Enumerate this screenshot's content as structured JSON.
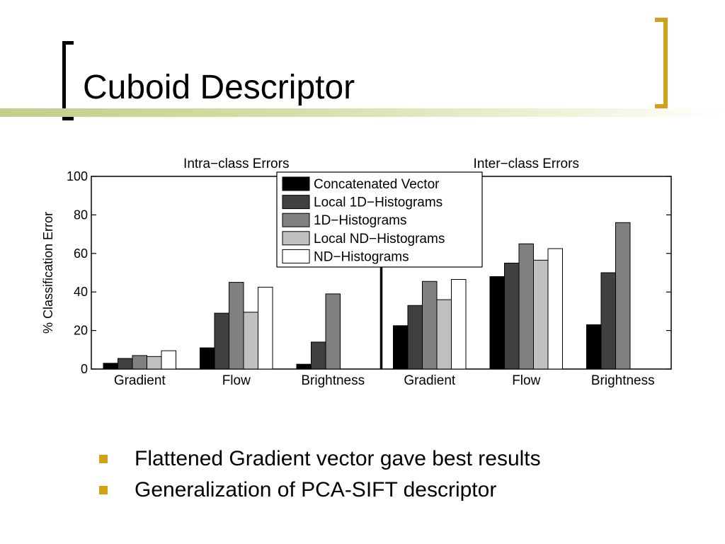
{
  "slide": {
    "title": "Cuboid Descriptor",
    "bullets": [
      "Flattened Gradient vector gave best results",
      "Generalization of PCA-SIFT descriptor"
    ],
    "accent_color": "#D4A017"
  },
  "chart_data": {
    "type": "bar",
    "panel_titles": [
      "Intra−class Errors",
      "Inter−class Errors"
    ],
    "categories": [
      "Gradient",
      "Flow",
      "Brightness",
      "Gradient",
      "Flow",
      "Brightness"
    ],
    "ylabel": "% Classification Error",
    "ylim": [
      0,
      100
    ],
    "yticks": [
      0,
      20,
      40,
      60,
      80,
      100
    ],
    "grid": false,
    "legend_position": "top-center",
    "series": [
      {
        "name": "Concatenated Vector",
        "color": "#000000",
        "values": [
          3,
          11,
          2.5,
          22.5,
          48,
          23
        ]
      },
      {
        "name": "Local 1D−Histograms",
        "color": "#404040",
        "values": [
          5.5,
          29,
          14,
          33,
          55,
          50
        ]
      },
      {
        "name": "1D−Histograms",
        "color": "#808080",
        "values": [
          7,
          45,
          39,
          45.5,
          65,
          76
        ]
      },
      {
        "name": "Local ND−Histograms",
        "color": "#c0c0c0",
        "values": [
          6.5,
          29.5,
          null,
          36,
          56.5,
          null
        ]
      },
      {
        "name": "ND−Histograms",
        "color": "#ffffff",
        "values": [
          9.5,
          42.5,
          null,
          46.5,
          62.5,
          null
        ]
      }
    ]
  }
}
